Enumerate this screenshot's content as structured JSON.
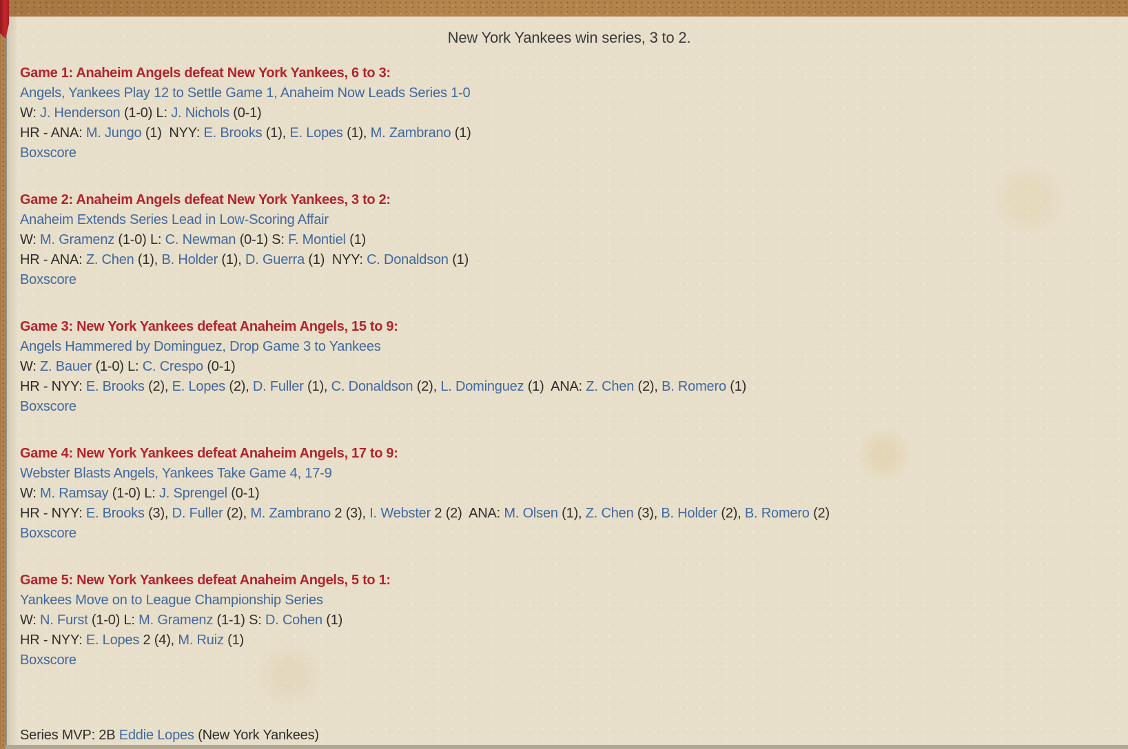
{
  "colors": {
    "background": "#e8dfca",
    "wood_frame": "#b5854e",
    "heading_red": "#b2242e",
    "link_blue": "#41689e",
    "text_dark": "#2f2e2b"
  },
  "page": {
    "title": "New York Yankees win series, 3 to 2."
  },
  "games": [
    {
      "heading": "Game 1: Anaheim Angels defeat New York Yankees, 6 to 3:",
      "headline": "Angels, Yankees Play 12 to Settle Game 1, Anaheim Now Leads Series 1-0",
      "pitchers": [
        {
          "label": "W:",
          "name": "J. Henderson",
          "stat": "(1-0)"
        },
        {
          "label": "L:",
          "name": "J. Nichols",
          "stat": "(0-1)"
        }
      ],
      "hr_label": "HR -",
      "hr_groups": [
        {
          "team": "ANA:",
          "players": [
            {
              "name": "M. Jungo",
              "stat": "(1)"
            }
          ]
        },
        {
          "team": "NYY:",
          "players": [
            {
              "name": "E. Brooks",
              "stat": "(1)"
            },
            {
              "name": "E. Lopes",
              "stat": "(1)"
            },
            {
              "name": "M. Zambrano",
              "stat": "(1)"
            }
          ]
        }
      ],
      "boxscore_label": "Boxscore"
    },
    {
      "heading": "Game 2: Anaheim Angels defeat New York Yankees, 3 to 2:",
      "headline": "Anaheim Extends Series Lead in Low-Scoring Affair",
      "pitchers": [
        {
          "label": "W:",
          "name": "M. Gramenz",
          "stat": "(1-0)"
        },
        {
          "label": "L:",
          "name": "C. Newman",
          "stat": "(0-1)"
        },
        {
          "label": "S:",
          "name": "F. Montiel",
          "stat": "(1)"
        }
      ],
      "hr_label": "HR -",
      "hr_groups": [
        {
          "team": "ANA:",
          "players": [
            {
              "name": "Z. Chen",
              "stat": "(1)"
            },
            {
              "name": "B. Holder",
              "stat": "(1)"
            },
            {
              "name": "D. Guerra",
              "stat": "(1)"
            }
          ]
        },
        {
          "team": "NYY:",
          "players": [
            {
              "name": "C. Donaldson",
              "stat": "(1)"
            }
          ]
        }
      ],
      "boxscore_label": "Boxscore"
    },
    {
      "heading": "Game 3: New York Yankees defeat Anaheim Angels, 15 to 9:",
      "headline": "Angels Hammered by Dominguez, Drop Game 3 to Yankees",
      "pitchers": [
        {
          "label": "W:",
          "name": "Z. Bauer",
          "stat": "(1-0)"
        },
        {
          "label": "L:",
          "name": "C. Crespo",
          "stat": "(0-1)"
        }
      ],
      "hr_label": "HR -",
      "hr_groups": [
        {
          "team": "NYY:",
          "players": [
            {
              "name": "E. Brooks",
              "stat": "(2)"
            },
            {
              "name": "E. Lopes",
              "stat": "(2)"
            },
            {
              "name": "D. Fuller",
              "stat": "(1)"
            },
            {
              "name": "C. Donaldson",
              "stat": "(2)"
            },
            {
              "name": "L. Dominguez",
              "stat": "(1)"
            }
          ]
        },
        {
          "team": "ANA:",
          "players": [
            {
              "name": "Z. Chen",
              "stat": "(2)"
            },
            {
              "name": "B. Romero",
              "stat": "(1)"
            }
          ]
        }
      ],
      "boxscore_label": "Boxscore"
    },
    {
      "heading": "Game 4: New York Yankees defeat Anaheim Angels, 17 to 9:",
      "headline": "Webster Blasts Angels, Yankees Take Game 4, 17-9",
      "pitchers": [
        {
          "label": "W:",
          "name": "M. Ramsay",
          "stat": "(1-0)"
        },
        {
          "label": "L:",
          "name": "J. Sprengel",
          "stat": "(0-1)"
        }
      ],
      "hr_label": "HR -",
      "hr_groups": [
        {
          "team": "NYY:",
          "players": [
            {
              "name": "E. Brooks",
              "stat": "(3)"
            },
            {
              "name": "D. Fuller",
              "stat": "(2)"
            },
            {
              "name": "M. Zambrano",
              "stat": "2 (3)"
            },
            {
              "name": "I. Webster",
              "stat": "2 (2)"
            }
          ]
        },
        {
          "team": "ANA:",
          "players": [
            {
              "name": "M. Olsen",
              "stat": "(1)"
            },
            {
              "name": "Z. Chen",
              "stat": "(3)"
            },
            {
              "name": "B. Holder",
              "stat": "(2)"
            },
            {
              "name": "B. Romero",
              "stat": "(2)"
            }
          ]
        }
      ],
      "boxscore_label": "Boxscore"
    },
    {
      "heading": "Game 5: New York Yankees defeat Anaheim Angels, 5 to 1:",
      "headline": "Yankees Move on to League Championship Series",
      "pitchers": [
        {
          "label": "W:",
          "name": "N. Furst",
          "stat": "(1-0)"
        },
        {
          "label": "L:",
          "name": "M. Gramenz",
          "stat": "(1-1)"
        },
        {
          "label": "S:",
          "name": "D. Cohen",
          "stat": "(1)"
        }
      ],
      "hr_label": "HR -",
      "hr_groups": [
        {
          "team": "NYY:",
          "players": [
            {
              "name": "E. Lopes",
              "stat": "2 (4)"
            },
            {
              "name": "M. Ruiz",
              "stat": "(1)"
            }
          ]
        }
      ],
      "boxscore_label": "Boxscore"
    }
  ],
  "mvp": {
    "prefix": "Series MVP: 2B ",
    "player": "Eddie Lopes",
    "suffix": " (New York Yankees)"
  }
}
